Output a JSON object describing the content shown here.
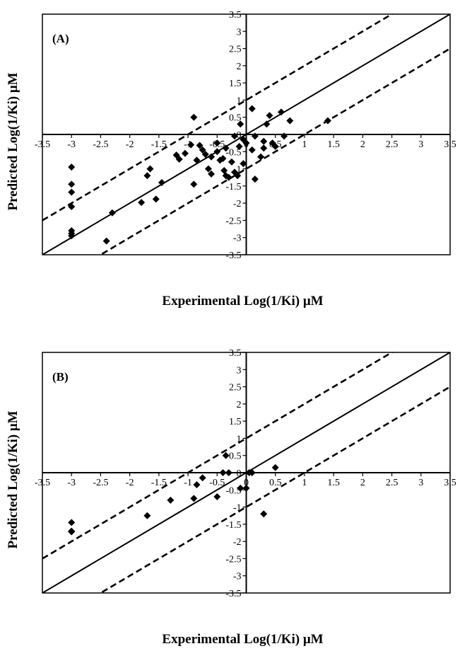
{
  "chart_data": [
    {
      "type": "scatter",
      "panel_label": "(A)",
      "xlabel": "Experimental Log(1/Ki) μM",
      "ylabel": "Predicted Log(1/Ki) μM",
      "xlim": [
        -3.5,
        3.5
      ],
      "ylim": [
        -3.5,
        3.5
      ],
      "x_ticks": [
        "-3.5",
        "-3",
        "-2.5",
        "-2",
        "-1.5",
        "-1",
        "-0.5",
        "0",
        "0.5",
        "1",
        "1.5",
        "2",
        "2.5",
        "3",
        "3.5"
      ],
      "y_ticks": [
        "3.5",
        "3",
        "2.5",
        "2",
        "1.5",
        "1",
        "0.5",
        "0",
        "-0.5",
        "-1",
        "-1.5",
        "-2",
        "-2.5",
        "-3",
        "-3.5"
      ],
      "grid": false,
      "reference_lines": [
        {
          "style": "solid",
          "slope": 1,
          "intercept": 0
        },
        {
          "style": "dashed",
          "slope": 1,
          "intercept": 1
        },
        {
          "style": "dashed",
          "slope": 1,
          "intercept": -1
        }
      ],
      "marker": "diamond",
      "points": [
        [
          -3.0,
          -0.95
        ],
        [
          -3.0,
          -1.45
        ],
        [
          -3.0,
          -1.68
        ],
        [
          -3.0,
          -2.1
        ],
        [
          -3.0,
          -2.8
        ],
        [
          -3.0,
          -2.88
        ],
        [
          -3.0,
          -2.95
        ],
        [
          -2.4,
          -3.1
        ],
        [
          -2.3,
          -2.28
        ],
        [
          -1.8,
          -1.98
        ],
        [
          -1.7,
          -1.2
        ],
        [
          -1.65,
          -1.0
        ],
        [
          -1.55,
          -1.88
        ],
        [
          -1.45,
          -1.4
        ],
        [
          -1.2,
          -0.6
        ],
        [
          -1.15,
          -0.72
        ],
        [
          -1.05,
          -0.55
        ],
        [
          -0.95,
          -0.3
        ],
        [
          -0.9,
          0.5
        ],
        [
          -0.9,
          -1.45
        ],
        [
          -0.85,
          -0.75
        ],
        [
          -0.8,
          -0.32
        ],
        [
          -0.75,
          -0.45
        ],
        [
          -0.7,
          -0.58
        ],
        [
          -0.65,
          -1.0
        ],
        [
          -0.6,
          -1.15
        ],
        [
          -0.5,
          -0.5
        ],
        [
          -0.45,
          -0.75
        ],
        [
          -0.4,
          -0.7
        ],
        [
          -0.38,
          -1.05
        ],
        [
          -0.35,
          -1.2
        ],
        [
          -0.3,
          -1.25
        ],
        [
          -0.25,
          -0.8
        ],
        [
          -0.2,
          -1.1
        ],
        [
          -0.15,
          -1.2
        ],
        [
          -0.12,
          -0.35
        ],
        [
          -0.1,
          0.3
        ],
        [
          -0.05,
          -0.85
        ],
        [
          -0.05,
          -0.15
        ],
        [
          0.0,
          -0.25
        ],
        [
          -0.2,
          -0.05
        ],
        [
          0.1,
          0.75
        ],
        [
          0.1,
          -0.45
        ],
        [
          0.15,
          -1.3
        ],
        [
          0.15,
          -0.05
        ],
        [
          0.25,
          -0.65
        ],
        [
          0.3,
          -0.4
        ],
        [
          0.3,
          -0.2
        ],
        [
          0.35,
          0.3
        ],
        [
          0.4,
          0.55
        ],
        [
          0.45,
          -0.25
        ],
        [
          0.5,
          -0.35
        ],
        [
          0.6,
          0.65
        ],
        [
          0.65,
          -0.05
        ],
        [
          0.75,
          0.4
        ],
        [
          1.4,
          0.4
        ],
        [
          -0.5,
          -0.25
        ],
        [
          -0.35,
          -0.4
        ],
        [
          -0.6,
          -0.65
        ]
      ]
    },
    {
      "type": "scatter",
      "panel_label": "(B)",
      "xlabel": "Experimental Log(1/Ki) μM",
      "ylabel": "Predicted Log(1/Ki) μM",
      "xlim": [
        -3.5,
        3.5
      ],
      "ylim": [
        -3.5,
        3.5
      ],
      "x_ticks": [
        "-3.5",
        "-3",
        "-2.5",
        "-2",
        "-1.5",
        "-1",
        "-0.5",
        "0",
        "0.5",
        "1",
        "1.5",
        "2",
        "2.5",
        "3",
        "3.5"
      ],
      "y_ticks": [
        "3.5",
        "3",
        "2.5",
        "2",
        "1.5",
        "1",
        "0.5",
        "0",
        "-0.5",
        "-1",
        "-1.5",
        "-2",
        "-2.5",
        "-3",
        "-3.5"
      ],
      "grid": false,
      "reference_lines": [
        {
          "style": "solid",
          "slope": 1,
          "intercept": 0
        },
        {
          "style": "dashed",
          "slope": 1,
          "intercept": 1
        },
        {
          "style": "dashed",
          "slope": 1,
          "intercept": -1
        }
      ],
      "marker": "diamond",
      "points": [
        [
          -3.0,
          -1.45
        ],
        [
          -3.0,
          -1.7
        ],
        [
          -3.0,
          -1.72
        ],
        [
          -1.7,
          -1.25
        ],
        [
          -1.3,
          -0.8
        ],
        [
          -0.9,
          -0.75
        ],
        [
          -0.85,
          -0.35
        ],
        [
          -0.75,
          -0.15
        ],
        [
          -0.5,
          -0.7
        ],
        [
          -0.4,
          0.0
        ],
        [
          -0.3,
          0.0
        ],
        [
          -0.35,
          0.5
        ],
        [
          -0.1,
          -0.45
        ],
        [
          0.0,
          -0.45
        ],
        [
          0.05,
          0.0
        ],
        [
          0.1,
          0.0
        ],
        [
          0.3,
          -1.2
        ],
        [
          0.5,
          0.15
        ]
      ]
    }
  ]
}
